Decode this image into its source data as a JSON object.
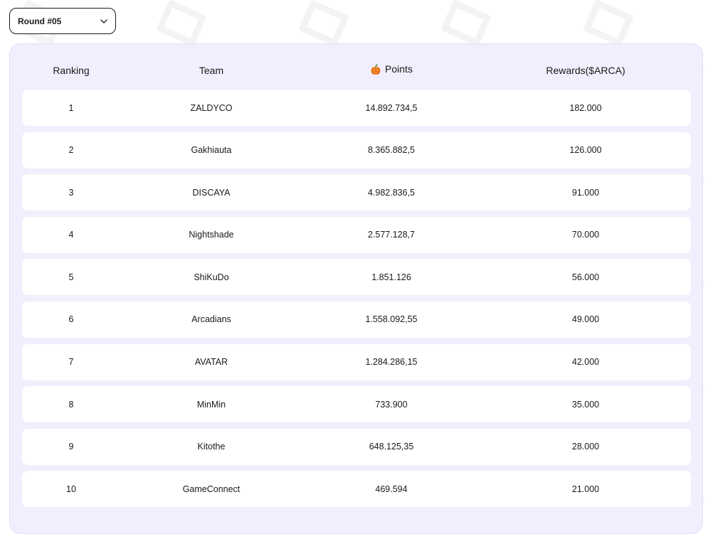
{
  "round_selector": {
    "selected": "Round #05",
    "icon": "chevron-down-icon"
  },
  "table": {
    "headers": {
      "ranking": "Ranking",
      "team": "Team",
      "points": "Points",
      "points_icon": "pumpkin-icon",
      "rewards": "Rewards($ARCA)"
    },
    "rows": [
      {
        "rank": "1",
        "team": "ZALDYCO",
        "points": "14.892.734,5",
        "rewards": "182.000"
      },
      {
        "rank": "2",
        "team": "Gakhiauta",
        "points": "8.365.882,5",
        "rewards": "126.000"
      },
      {
        "rank": "3",
        "team": "DISCAYA",
        "points": "4.982.836,5",
        "rewards": "91.000"
      },
      {
        "rank": "4",
        "team": "Nightshade",
        "points": "2.577.128,7",
        "rewards": "70.000"
      },
      {
        "rank": "5",
        "team": "ShiKuDo",
        "points": "1.851.126",
        "rewards": "56.000"
      },
      {
        "rank": "6",
        "team": "Arcadians",
        "points": "1.558.092,55",
        "rewards": "49.000"
      },
      {
        "rank": "7",
        "team": "AVATAR",
        "points": "1.284.286,15",
        "rewards": "42.000"
      },
      {
        "rank": "8",
        "team": "MinMin",
        "points": "733.900",
        "rewards": "35.000"
      },
      {
        "rank": "9",
        "team": "Kitothe",
        "points": "648.125,35",
        "rewards": "28.000"
      },
      {
        "rank": "10",
        "team": "GameConnect",
        "points": "469.594",
        "rewards": "21.000"
      }
    ]
  },
  "colors": {
    "panel_bg": "#f1eefd",
    "row_bg": "#ffffff",
    "text": "#1a1a1a",
    "pumpkin": "#f47b20"
  }
}
